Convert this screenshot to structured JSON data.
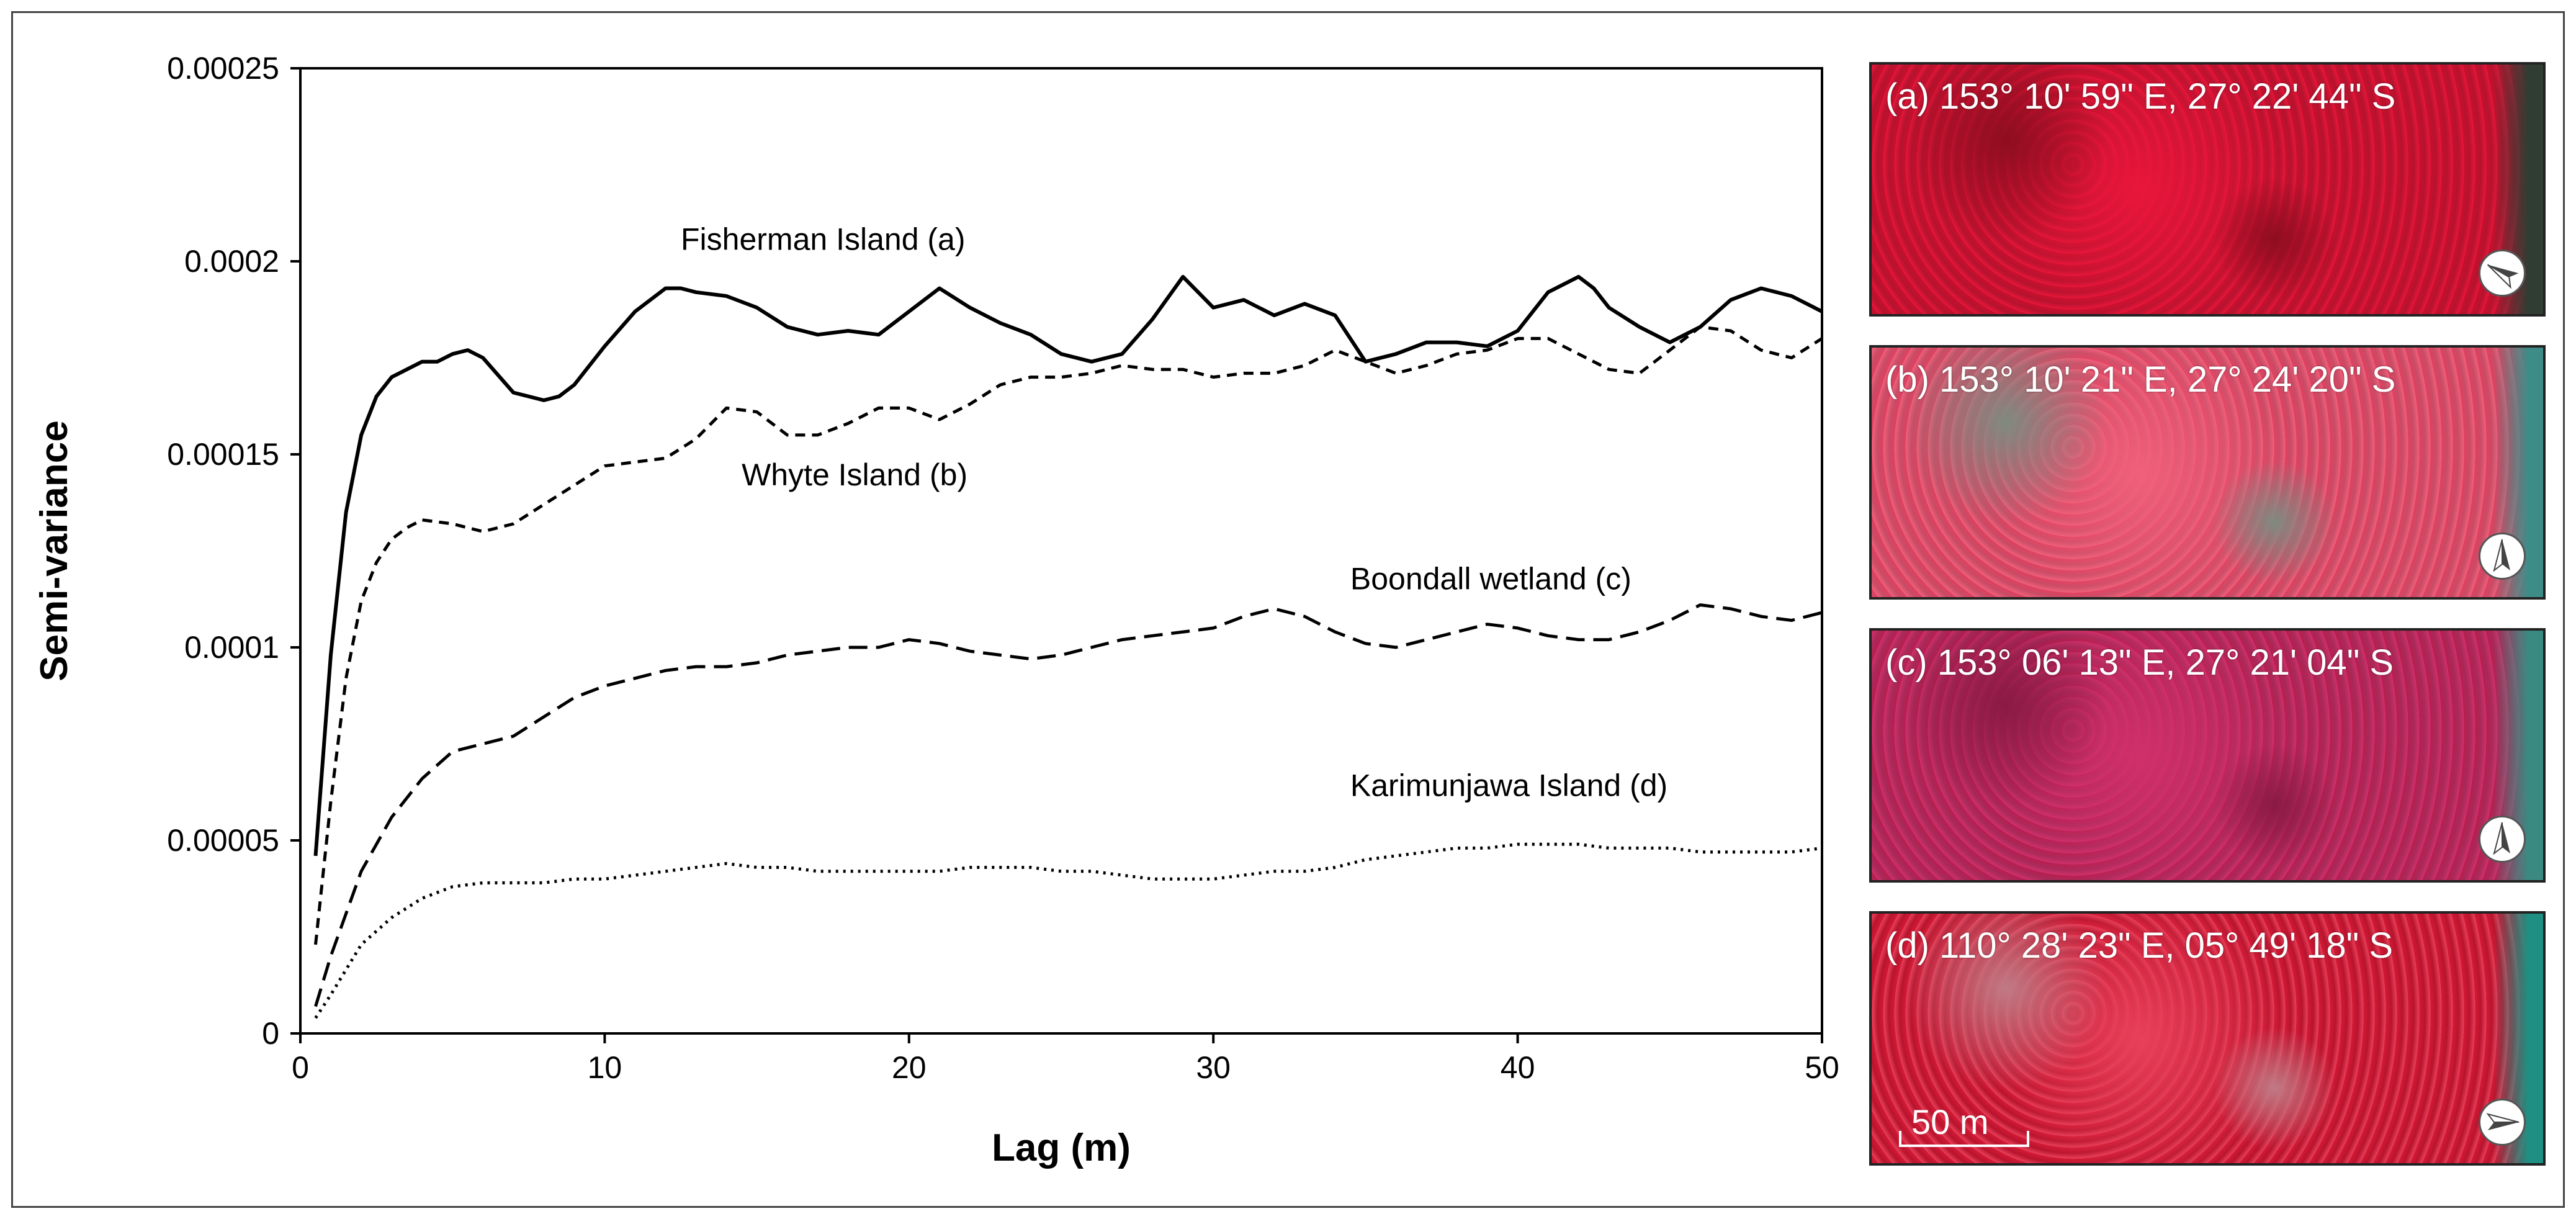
{
  "chart_data": {
    "type": "line",
    "xlabel": "Lag (m)",
    "ylabel": "Semi-variance",
    "xlim": [
      0,
      50
    ],
    "ylim": [
      0,
      0.00025
    ],
    "x_ticks": [
      "0",
      "10",
      "20",
      "30",
      "40",
      "50"
    ],
    "y_ticks": [
      "0",
      "0.00005",
      "0.0001",
      "0.00015",
      "0.0002",
      "0.00025"
    ],
    "grid": false,
    "series": [
      {
        "name": "Fisherman Island (a)",
        "style": "solid",
        "x": [
          0.5,
          1,
          1.5,
          2,
          2.5,
          3,
          3.5,
          4,
          4.5,
          5,
          5.5,
          6,
          7,
          8,
          8.5,
          9,
          10,
          11,
          12,
          12.5,
          13,
          14,
          15,
          16,
          17,
          18,
          19,
          20,
          21,
          22,
          23,
          24,
          25,
          26,
          27,
          28,
          29,
          30,
          31,
          32,
          33,
          34,
          35,
          36,
          37,
          38,
          39,
          40,
          41,
          42,
          42.5,
          43,
          44,
          45,
          46,
          47,
          48,
          49,
          50
        ],
        "y": [
          4.6e-05,
          9.8e-05,
          0.000135,
          0.000155,
          0.000165,
          0.00017,
          0.000172,
          0.000174,
          0.000174,
          0.000176,
          0.000177,
          0.000175,
          0.000166,
          0.000164,
          0.000165,
          0.000168,
          0.000178,
          0.000187,
          0.000193,
          0.000193,
          0.000192,
          0.000191,
          0.000188,
          0.000183,
          0.000181,
          0.000182,
          0.000181,
          0.000187,
          0.000193,
          0.000188,
          0.000184,
          0.000181,
          0.000176,
          0.000174,
          0.000176,
          0.000185,
          0.000196,
          0.000188,
          0.00019,
          0.000186,
          0.000189,
          0.000186,
          0.000174,
          0.000176,
          0.000179,
          0.000179,
          0.000178,
          0.000182,
          0.000192,
          0.000196,
          0.000193,
          0.000188,
          0.000183,
          0.000179,
          0.000183,
          0.00019,
          0.000193,
          0.000191,
          0.000187
        ]
      },
      {
        "name": "Whyte Island (b)",
        "style": "short-dash",
        "x": [
          0.5,
          1,
          1.5,
          2,
          2.5,
          3,
          3.5,
          4,
          5,
          6,
          7,
          8,
          9,
          10,
          11,
          12,
          13,
          14,
          15,
          16,
          17,
          18,
          19,
          20,
          21,
          22,
          23,
          24,
          25,
          26,
          27,
          28,
          29,
          30,
          31,
          32,
          33,
          34,
          35,
          36,
          37,
          38,
          39,
          40,
          41,
          42,
          43,
          44,
          45,
          46,
          47,
          48,
          49,
          50
        ],
        "y": [
          2.3e-05,
          6e-05,
          9.2e-05,
          0.000112,
          0.000122,
          0.000128,
          0.000131,
          0.000133,
          0.000132,
          0.00013,
          0.000132,
          0.000137,
          0.000142,
          0.000147,
          0.000148,
          0.000149,
          0.000154,
          0.000162,
          0.000161,
          0.000155,
          0.000155,
          0.000158,
          0.000162,
          0.000162,
          0.000159,
          0.000163,
          0.000168,
          0.00017,
          0.00017,
          0.000171,
          0.000173,
          0.000172,
          0.000172,
          0.00017,
          0.000171,
          0.000171,
          0.000173,
          0.000177,
          0.000174,
          0.000171,
          0.000173,
          0.000176,
          0.000177,
          0.00018,
          0.00018,
          0.000176,
          0.000172,
          0.000171,
          0.000177,
          0.000183,
          0.000182,
          0.000177,
          0.000175,
          0.00018
        ]
      },
      {
        "name": "Boondall wetland (c)",
        "style": "long-dash",
        "x": [
          0.5,
          1,
          2,
          3,
          4,
          5,
          6,
          7,
          8,
          9,
          10,
          11,
          12,
          13,
          14,
          15,
          16,
          17,
          18,
          19,
          20,
          21,
          22,
          23,
          24,
          25,
          26,
          27,
          28,
          29,
          30,
          31,
          32,
          33,
          34,
          35,
          36,
          37,
          38,
          39,
          40,
          41,
          42,
          43,
          44,
          45,
          46,
          47,
          48,
          49,
          50
        ],
        "y": [
          7e-06,
          2e-05,
          4.2e-05,
          5.6e-05,
          6.6e-05,
          7.3e-05,
          7.5e-05,
          7.7e-05,
          8.2e-05,
          8.7e-05,
          9e-05,
          9.2e-05,
          9.4e-05,
          9.5e-05,
          9.5e-05,
          9.6e-05,
          9.8e-05,
          9.9e-05,
          0.0001,
          0.0001,
          0.000102,
          0.000101,
          9.9e-05,
          9.8e-05,
          9.7e-05,
          9.8e-05,
          0.0001,
          0.000102,
          0.000103,
          0.000104,
          0.000105,
          0.000108,
          0.00011,
          0.000108,
          0.000104,
          0.000101,
          0.0001,
          0.000102,
          0.000104,
          0.000106,
          0.000105,
          0.000103,
          0.000102,
          0.000102,
          0.000104,
          0.000107,
          0.000111,
          0.00011,
          0.000108,
          0.000107,
          0.000109
        ]
      },
      {
        "name": "Karimunjawa Island (d)",
        "style": "dotted",
        "x": [
          0.5,
          1,
          2,
          3,
          4,
          5,
          6,
          7,
          8,
          9,
          10,
          11,
          12,
          13,
          14,
          15,
          16,
          17,
          18,
          19,
          20,
          21,
          22,
          23,
          24,
          25,
          26,
          27,
          28,
          29,
          30,
          31,
          32,
          33,
          34,
          35,
          36,
          37,
          38,
          39,
          40,
          41,
          42,
          43,
          44,
          45,
          46,
          47,
          48,
          49,
          50
        ],
        "y": [
          4e-06,
          1e-05,
          2.3e-05,
          3e-05,
          3.5e-05,
          3.8e-05,
          3.9e-05,
          3.9e-05,
          3.9e-05,
          4e-05,
          4e-05,
          4.1e-05,
          4.2e-05,
          4.3e-05,
          4.4e-05,
          4.3e-05,
          4.3e-05,
          4.2e-05,
          4.2e-05,
          4.2e-05,
          4.2e-05,
          4.2e-05,
          4.3e-05,
          4.3e-05,
          4.3e-05,
          4.2e-05,
          4.2e-05,
          4.1e-05,
          4e-05,
          4e-05,
          4e-05,
          4.1e-05,
          4.2e-05,
          4.2e-05,
          4.3e-05,
          4.5e-05,
          4.6e-05,
          4.7e-05,
          4.8e-05,
          4.8e-05,
          4.9e-05,
          4.9e-05,
          4.9e-05,
          4.8e-05,
          4.8e-05,
          4.8e-05,
          4.7e-05,
          4.7e-05,
          4.7e-05,
          4.7e-05,
          4.8e-05
        ]
      }
    ],
    "annotations": [
      "Fisherman Island (a)",
      "Whyte Island (b)",
      "Boondall wetland (c)",
      "Karimunjawa Island (d)"
    ]
  },
  "panels": [
    {
      "label": "(a) 153° 10' 59\" E, 27° 22' 44\" S",
      "arrow_heading_deg": 300,
      "colors": [
        "#c8102e",
        "#e8163a",
        "#8e0d1f",
        "#b5132f"
      ],
      "edge_color": "#2f3d33"
    },
    {
      "label": "(b) 153° 10' 21\" E, 27° 24' 20\" S",
      "arrow_heading_deg": 0,
      "colors": [
        "#e04060",
        "#f0607a",
        "#7f8a80",
        "#c84c66"
      ],
      "edge_color": "#3e8c88"
    },
    {
      "label": "(c) 153° 06' 13\" E, 27° 21' 04\" S",
      "arrow_heading_deg": 0,
      "colors": [
        "#b81e50",
        "#d0306a",
        "#8a1a44",
        "#a82a58"
      ],
      "edge_color": "#3a8a82"
    },
    {
      "label": "(d) 110° 28' 23\" E, 05° 49' 18\" S",
      "arrow_heading_deg": 90,
      "colors": [
        "#d41a36",
        "#e8405a",
        "#c07a84",
        "#b8142e"
      ],
      "edge_color": "#1e8f82"
    }
  ],
  "scale_bar": {
    "label": "50 m"
  }
}
